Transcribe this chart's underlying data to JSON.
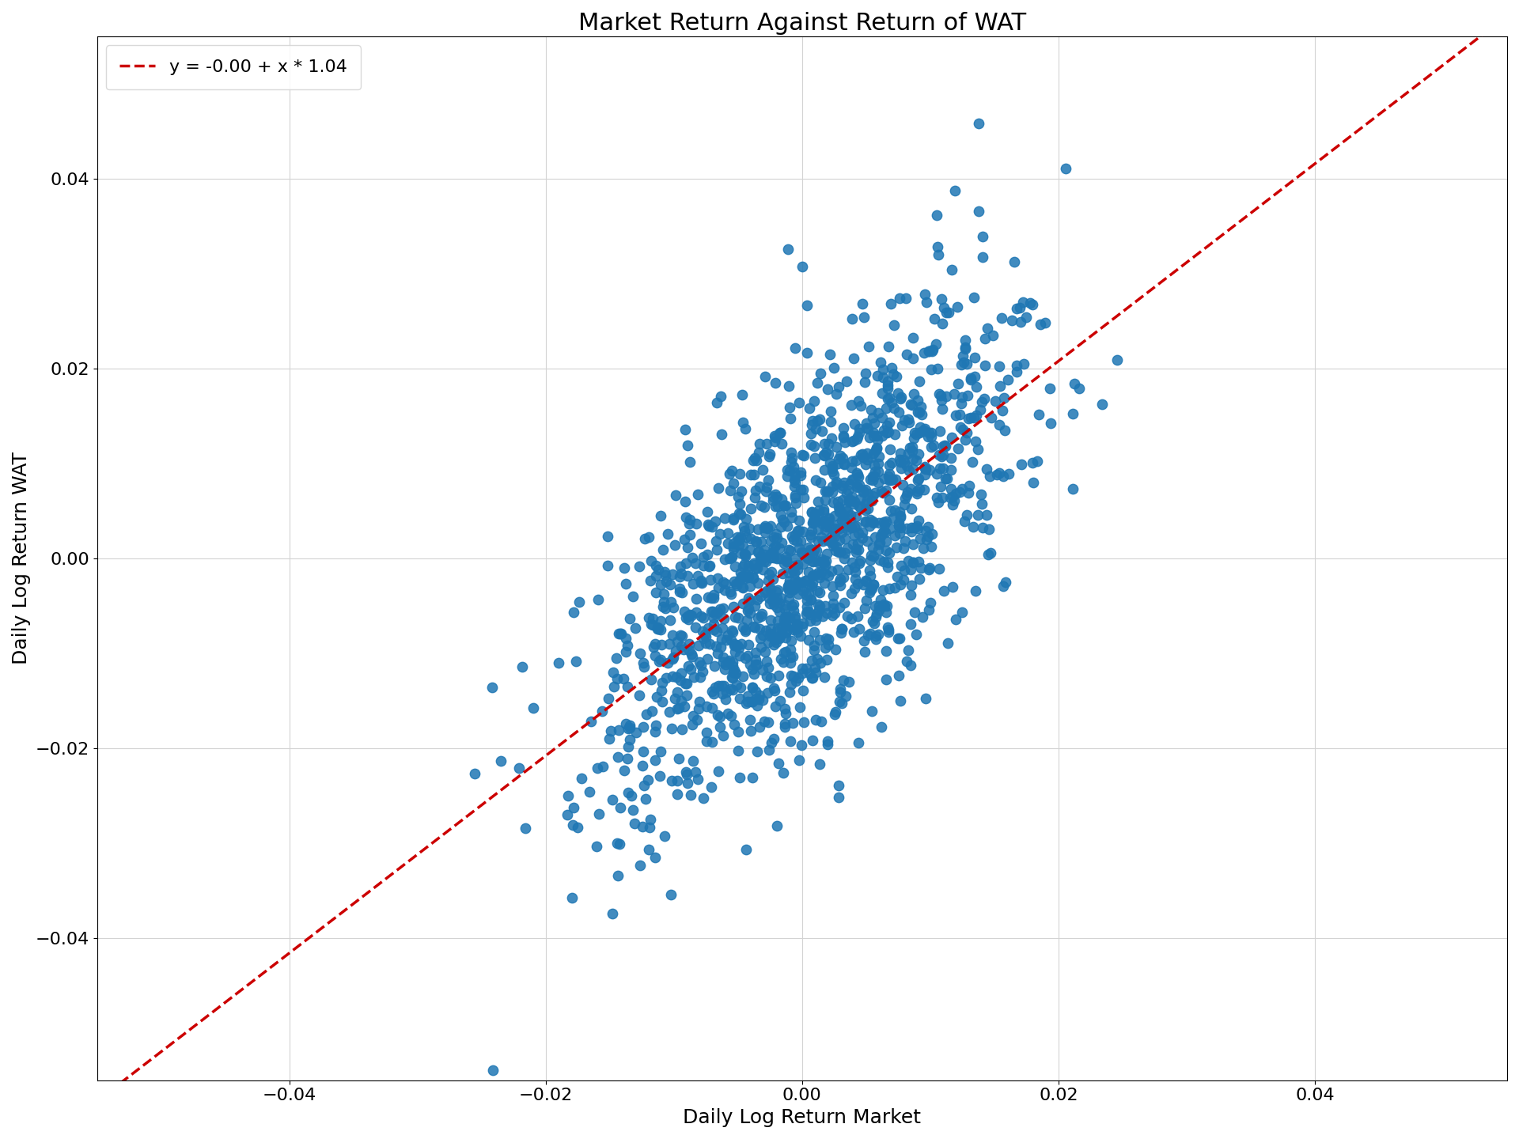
{
  "title": "Market Return Against Return of WAT",
  "xlabel": "Daily Log Return Market",
  "ylabel": "Daily Log Return WAT",
  "legend_label": "y = -0.00 + x * 1.04",
  "intercept": 0.0,
  "slope": 1.04,
  "xlim": [
    -0.055,
    0.055
  ],
  "ylim": [
    -0.055,
    0.055
  ],
  "xticks": [
    -0.04,
    -0.02,
    0.0,
    0.02,
    0.04
  ],
  "yticks": [
    -0.04,
    -0.02,
    0.0,
    0.02,
    0.04
  ],
  "scatter_color": "#1f77b4",
  "line_color": "#cc0000",
  "n_points": 1500,
  "seed": 7,
  "title_fontsize": 22,
  "label_fontsize": 18,
  "tick_fontsize": 16,
  "legend_fontsize": 16,
  "marker_size": 80,
  "market_mean": 0.0005,
  "market_std": 0.008,
  "residual_std": 0.009,
  "figsize": [
    19.2,
    14.4
  ],
  "dpi": 100
}
